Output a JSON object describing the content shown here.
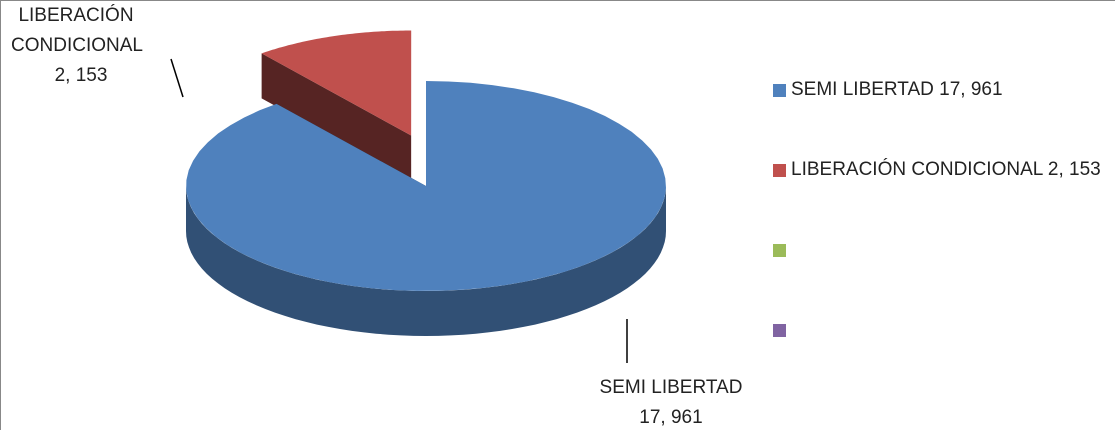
{
  "chart_data": {
    "type": "pie3d",
    "categories": [
      "SEMI LIBERTAD",
      "LIBERACIÓN CONDICIONAL",
      null,
      null
    ],
    "values": [
      17961,
      2153,
      null,
      null
    ],
    "value_labels": [
      "17, 961",
      "2, 153",
      null,
      null
    ],
    "colors": [
      "#4f81bd",
      "#c0504d",
      "#9bbb59",
      "#8064a2"
    ],
    "legend": "right"
  }
}
